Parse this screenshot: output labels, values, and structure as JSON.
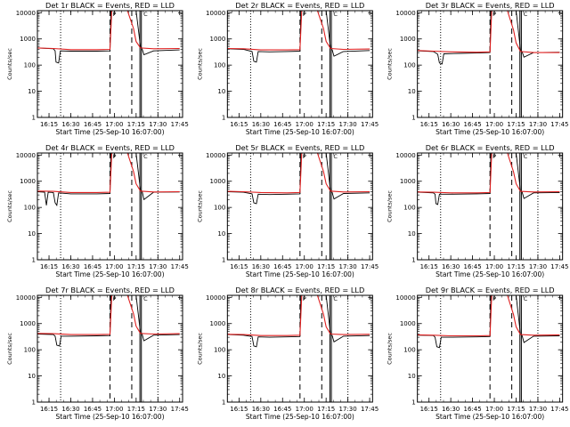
{
  "chart_data": [
    {
      "type": "line",
      "title": "Det 1r BLACK = Events, RED = LLD",
      "xlabel": "Start Time (25-Sep-10 16:07:00)",
      "ylabel": "Counts/sec",
      "x_ticks": [
        "16:15",
        "16:30",
        "16:45",
        "17:00",
        "17:15",
        "17:30",
        "17:45"
      ],
      "y_ticks": [
        "1",
        "10",
        "100",
        "1000",
        "10000"
      ],
      "ylim": [
        1,
        12000
      ],
      "yscale": "log",
      "xlim": [
        "16:07",
        "17:47"
      ],
      "dotted_lines": [
        "16:23",
        "17:30"
      ],
      "dashed_lines": [
        "16:57",
        "17:12"
      ],
      "solid_lines": [
        "17:17",
        "17:18"
      ],
      "markers": [
        "P",
        "C"
      ],
      "series": [
        {
          "name": "Events",
          "color": "#000000",
          "x": [
            16.12,
            16.3,
            16.32,
            16.33,
            16.36,
            16.38,
            16.5,
            16.8,
            16.95,
            16.96,
            17.25,
            17.3,
            17.32,
            17.34,
            17.45,
            17.75
          ],
          "y": [
            450,
            420,
            350,
            130,
            120,
            350,
            340,
            340,
            350,
            12000,
            12000,
            500,
            400,
            250,
            350,
            380
          ]
        },
        {
          "name": "LLD",
          "color": "#e02020",
          "x": [
            16.12,
            16.3,
            16.5,
            16.8,
            16.95,
            16.97,
            17.0,
            17.1,
            17.15,
            17.22,
            17.25,
            17.3,
            17.45,
            17.75
          ],
          "y": [
            450,
            430,
            390,
            390,
            400,
            12000,
            12000,
            12000,
            12000,
            2500,
            800,
            450,
            420,
            430
          ]
        }
      ]
    },
    {
      "type": "line",
      "title": "Det 2r BLACK = Events, RED = LLD",
      "xlabel": "Start Time (25-Sep-10 16:07:00)",
      "ylabel": "Counts/sec",
      "x_ticks": [
        "16:15",
        "16:30",
        "16:45",
        "17:00",
        "17:15",
        "17:30",
        "17:45"
      ],
      "y_ticks": [
        "1",
        "10",
        "100",
        "1000",
        "10000"
      ],
      "ylim": [
        1,
        12000
      ],
      "yscale": "log",
      "xlim": [
        "16:07",
        "17:47"
      ],
      "dotted_lines": [
        "16:23",
        "17:30"
      ],
      "dashed_lines": [
        "16:57",
        "17:12"
      ],
      "solid_lines": [
        "17:17",
        "17:18"
      ],
      "markers": [
        "P",
        "C"
      ],
      "series": [
        {
          "name": "Events",
          "color": "#000000",
          "x": [
            16.12,
            16.3,
            16.4,
            16.42,
            16.45,
            16.47,
            16.6,
            16.8,
            16.95,
            16.96,
            17.25,
            17.3,
            17.32,
            17.34,
            17.45,
            17.75
          ],
          "y": [
            420,
            400,
            330,
            140,
            130,
            330,
            320,
            330,
            340,
            12000,
            12000,
            450,
            380,
            220,
            330,
            360
          ]
        },
        {
          "name": "LLD",
          "color": "#e02020",
          "x": [
            16.12,
            16.3,
            16.5,
            16.8,
            16.95,
            16.97,
            17.0,
            17.1,
            17.15,
            17.22,
            17.25,
            17.3,
            17.45,
            17.75
          ],
          "y": [
            430,
            420,
            380,
            380,
            390,
            12000,
            12000,
            12000,
            12000,
            2500,
            800,
            430,
            400,
            410
          ]
        }
      ]
    },
    {
      "type": "line",
      "title": "Det 3r BLACK = Events, RED = LLD",
      "xlabel": "Start Time (25-Sep-10 16:07:00)",
      "ylabel": "Counts/sec",
      "x_ticks": [
        "16:15",
        "16:30",
        "16:45",
        "17:00",
        "17:15",
        "17:30",
        "17:45"
      ],
      "y_ticks": [
        "1",
        "10",
        "100",
        "1000",
        "10000"
      ],
      "ylim": [
        1,
        12000
      ],
      "yscale": "log",
      "xlim": [
        "16:07",
        "17:47"
      ],
      "dotted_lines": [
        "16:23",
        "17:30"
      ],
      "dashed_lines": [
        "16:57",
        "17:12"
      ],
      "solid_lines": [
        "17:17",
        "17:18"
      ],
      "markers": [
        "P",
        "C"
      ],
      "series": [
        {
          "name": "Events",
          "color": "#000000",
          "x": [
            16.12,
            16.3,
            16.35,
            16.37,
            16.4,
            16.42,
            16.6,
            16.8,
            16.95,
            16.96,
            17.25,
            17.3,
            17.32,
            17.34,
            17.45,
            17.75
          ],
          "y": [
            350,
            330,
            260,
            120,
            110,
            270,
            280,
            290,
            300,
            12000,
            12000,
            380,
            320,
            200,
            300,
            310
          ]
        },
        {
          "name": "LLD",
          "color": "#e02020",
          "x": [
            16.12,
            16.3,
            16.5,
            16.8,
            16.95,
            16.97,
            17.0,
            17.1,
            17.15,
            17.22,
            17.25,
            17.3,
            17.45,
            17.75
          ],
          "y": [
            360,
            340,
            320,
            310,
            320,
            12000,
            12000,
            12000,
            12000,
            2200,
            700,
            330,
            300,
            300
          ]
        }
      ]
    },
    {
      "type": "line",
      "title": "Det 4r BLACK = Events, RED = LLD",
      "xlabel": "Start Time (25-Sep-10 16:07:00)",
      "ylabel": "Counts/sec",
      "x_ticks": [
        "16:15",
        "16:30",
        "16:45",
        "17:00",
        "17:15",
        "17:30",
        "17:45"
      ],
      "y_ticks": [
        "1",
        "10",
        "100",
        "1000",
        "10000"
      ],
      "ylim": [
        1,
        12000
      ],
      "yscale": "log",
      "xlim": [
        "16:07",
        "17:47"
      ],
      "dotted_lines": [
        "16:23",
        "17:30"
      ],
      "dashed_lines": [
        "16:57",
        "17:12"
      ],
      "solid_lines": [
        "17:17",
        "17:18"
      ],
      "markers": [
        "P",
        "C"
      ],
      "series": [
        {
          "name": "Events",
          "color": "#000000",
          "x": [
            16.12,
            16.2,
            16.22,
            16.24,
            16.3,
            16.32,
            16.34,
            16.36,
            16.5,
            16.8,
            16.95,
            16.96,
            17.25,
            17.3,
            17.32,
            17.34,
            17.45,
            17.75
          ],
          "y": [
            400,
            380,
            120,
            380,
            370,
            150,
            120,
            360,
            330,
            330,
            340,
            12000,
            12000,
            450,
            400,
            200,
            380,
            390
          ]
        },
        {
          "name": "LLD",
          "color": "#e02020",
          "x": [
            16.12,
            16.3,
            16.5,
            16.8,
            16.95,
            16.97,
            17.0,
            17.1,
            17.15,
            17.22,
            17.25,
            17.3,
            17.45,
            17.75
          ],
          "y": [
            420,
            410,
            370,
            370,
            380,
            12000,
            12000,
            12000,
            12000,
            2400,
            800,
            420,
            390,
            400
          ]
        }
      ]
    },
    {
      "type": "line",
      "title": "Det 5r BLACK = Events, RED = LLD",
      "xlabel": "Start Time (25-Sep-10 16:07:00)",
      "ylabel": "Counts/sec",
      "x_ticks": [
        "16:15",
        "16:30",
        "16:45",
        "17:00",
        "17:15",
        "17:30",
        "17:45"
      ],
      "y_ticks": [
        "1",
        "10",
        "100",
        "1000",
        "10000"
      ],
      "ylim": [
        1,
        12000
      ],
      "yscale": "log",
      "xlim": [
        "16:07",
        "17:47"
      ],
      "dotted_lines": [
        "16:23",
        "17:30"
      ],
      "dashed_lines": [
        "16:57",
        "17:12"
      ],
      "solid_lines": [
        "17:17",
        "17:18"
      ],
      "markers": [
        "P",
        "C"
      ],
      "series": [
        {
          "name": "Events",
          "color": "#000000",
          "x": [
            16.12,
            16.3,
            16.4,
            16.42,
            16.45,
            16.47,
            16.6,
            16.8,
            16.95,
            16.96,
            17.25,
            17.3,
            17.32,
            17.34,
            17.45,
            17.75
          ],
          "y": [
            400,
            380,
            330,
            150,
            140,
            320,
            310,
            320,
            330,
            12000,
            12000,
            420,
            370,
            210,
            340,
            360
          ]
        },
        {
          "name": "LLD",
          "color": "#e02020",
          "x": [
            16.12,
            16.3,
            16.5,
            16.8,
            16.95,
            16.97,
            17.0,
            17.1,
            17.15,
            17.22,
            17.25,
            17.3,
            17.45,
            17.75
          ],
          "y": [
            410,
            400,
            370,
            360,
            370,
            12000,
            12000,
            12000,
            12000,
            2400,
            800,
            420,
            390,
            400
          ]
        }
      ]
    },
    {
      "type": "line",
      "title": "Det 6r BLACK = Events, RED = LLD",
      "xlabel": "Start Time (25-Sep-10 16:07:00)",
      "ylabel": "Counts/sec",
      "x_ticks": [
        "16:15",
        "16:30",
        "16:45",
        "17:00",
        "17:15",
        "17:30",
        "17:45"
      ],
      "y_ticks": [
        "1",
        "10",
        "100",
        "1000",
        "10000"
      ],
      "ylim": [
        1,
        12000
      ],
      "yscale": "log",
      "xlim": [
        "16:07",
        "17:47"
      ],
      "dotted_lines": [
        "16:23",
        "17:30"
      ],
      "dashed_lines": [
        "16:57",
        "17:12"
      ],
      "solid_lines": [
        "17:17",
        "17:18"
      ],
      "markers": [
        "P",
        "C"
      ],
      "series": [
        {
          "name": "Events",
          "color": "#000000",
          "x": [
            16.12,
            16.3,
            16.32,
            16.33,
            16.35,
            16.37,
            16.5,
            16.8,
            16.95,
            16.96,
            17.25,
            17.3,
            17.32,
            17.34,
            17.45,
            17.75
          ],
          "y": [
            380,
            360,
            320,
            140,
            130,
            320,
            320,
            330,
            340,
            12000,
            12000,
            430,
            380,
            220,
            360,
            370
          ]
        },
        {
          "name": "LLD",
          "color": "#e02020",
          "x": [
            16.12,
            16.3,
            16.5,
            16.8,
            16.95,
            16.97,
            17.0,
            17.1,
            17.15,
            17.22,
            17.25,
            17.3,
            17.45,
            17.75
          ],
          "y": [
            390,
            380,
            360,
            360,
            370,
            12000,
            12000,
            12000,
            12000,
            2300,
            800,
            410,
            390,
            400
          ]
        }
      ]
    },
    {
      "type": "line",
      "title": "Det 7r BLACK = Events, RED = LLD",
      "xlabel": "Start Time (25-Sep-10 16:07:00)",
      "ylabel": "Counts/sec",
      "x_ticks": [
        "16:15",
        "16:30",
        "16:45",
        "17:00",
        "17:15",
        "17:30",
        "17:45"
      ],
      "y_ticks": [
        "1",
        "10",
        "100",
        "1000",
        "10000"
      ],
      "ylim": [
        1,
        12000
      ],
      "yscale": "log",
      "xlim": [
        "16:07",
        "17:47"
      ],
      "dotted_lines": [
        "16:23",
        "17:30"
      ],
      "dashed_lines": [
        "16:57",
        "17:12"
      ],
      "solid_lines": [
        "17:17",
        "17:18"
      ],
      "markers": [
        "P",
        "C"
      ],
      "series": [
        {
          "name": "Events",
          "color": "#000000",
          "x": [
            16.12,
            16.3,
            16.32,
            16.34,
            16.37,
            16.39,
            16.5,
            16.8,
            16.95,
            16.96,
            17.25,
            17.3,
            17.32,
            17.34,
            17.45,
            17.75
          ],
          "y": [
            400,
            380,
            330,
            150,
            140,
            330,
            330,
            340,
            350,
            12000,
            12000,
            440,
            380,
            220,
            360,
            380
          ]
        },
        {
          "name": "LLD",
          "color": "#e02020",
          "x": [
            16.12,
            16.3,
            16.5,
            16.8,
            16.95,
            16.97,
            17.0,
            17.1,
            17.15,
            17.22,
            17.25,
            17.3,
            17.45,
            17.75
          ],
          "y": [
            420,
            410,
            380,
            380,
            390,
            12000,
            12000,
            12000,
            12000,
            2400,
            800,
            420,
            400,
            410
          ]
        }
      ]
    },
    {
      "type": "line",
      "title": "Det 8r BLACK = Events, RED = LLD",
      "xlabel": "Start Time (25-Sep-10 16:07:00)",
      "ylabel": "Counts/sec",
      "x_ticks": [
        "16:15",
        "16:30",
        "16:45",
        "17:00",
        "17:15",
        "17:30",
        "17:45"
      ],
      "y_ticks": [
        "1",
        "10",
        "100",
        "1000",
        "10000"
      ],
      "ylim": [
        1,
        12000
      ],
      "yscale": "log",
      "xlim": [
        "16:07",
        "17:47"
      ],
      "dotted_lines": [
        "16:23",
        "17:30"
      ],
      "dashed_lines": [
        "16:57",
        "17:12"
      ],
      "solid_lines": [
        "17:17",
        "17:18"
      ],
      "markers": [
        "P",
        "C"
      ],
      "series": [
        {
          "name": "Events",
          "color": "#000000",
          "x": [
            16.12,
            16.3,
            16.4,
            16.42,
            16.45,
            16.47,
            16.6,
            16.8,
            16.95,
            16.96,
            17.25,
            17.3,
            17.32,
            17.34,
            17.45,
            17.75
          ],
          "y": [
            380,
            360,
            320,
            140,
            130,
            310,
            300,
            310,
            320,
            12000,
            12000,
            400,
            350,
            200,
            330,
            350
          ]
        },
        {
          "name": "LLD",
          "color": "#e02020",
          "x": [
            16.12,
            16.3,
            16.5,
            16.8,
            16.95,
            16.97,
            17.0,
            17.1,
            17.15,
            17.22,
            17.25,
            17.3,
            17.45,
            17.75
          ],
          "y": [
            390,
            380,
            350,
            350,
            360,
            12000,
            12000,
            12000,
            12000,
            2300,
            750,
            400,
            380,
            390
          ]
        }
      ]
    },
    {
      "type": "line",
      "title": "Det 9r BLACK = Events, RED = LLD",
      "xlabel": "Start Time (25-Sep-10 16:07:00)",
      "ylabel": "Counts/sec",
      "x_ticks": [
        "16:15",
        "16:30",
        "16:45",
        "17:00",
        "17:15",
        "17:30",
        "17:45"
      ],
      "y_ticks": [
        "1",
        "10",
        "100",
        "1000",
        "10000"
      ],
      "ylim": [
        1,
        12000
      ],
      "yscale": "log",
      "xlim": [
        "16:07",
        "17:47"
      ],
      "dotted_lines": [
        "16:23",
        "17:30"
      ],
      "dashed_lines": [
        "16:57",
        "17:12"
      ],
      "solid_lines": [
        "17:17",
        "17:18"
      ],
      "markers": [
        "P",
        "C"
      ],
      "series": [
        {
          "name": "Events",
          "color": "#000000",
          "x": [
            16.12,
            16.3,
            16.32,
            16.34,
            16.37,
            16.39,
            16.5,
            16.8,
            16.95,
            16.96,
            17.25,
            17.3,
            17.32,
            17.34,
            17.45,
            17.75
          ],
          "y": [
            360,
            350,
            300,
            130,
            120,
            300,
            300,
            310,
            320,
            12000,
            12000,
            390,
            340,
            190,
            330,
            340
          ]
        },
        {
          "name": "LLD",
          "color": "#e02020",
          "x": [
            16.12,
            16.3,
            16.5,
            16.8,
            16.95,
            16.97,
            17.0,
            17.1,
            17.15,
            17.22,
            17.25,
            17.3,
            17.45,
            17.75
          ],
          "y": [
            370,
            360,
            340,
            340,
            350,
            12000,
            12000,
            12000,
            12000,
            2200,
            750,
            380,
            360,
            370
          ]
        }
      ]
    }
  ]
}
